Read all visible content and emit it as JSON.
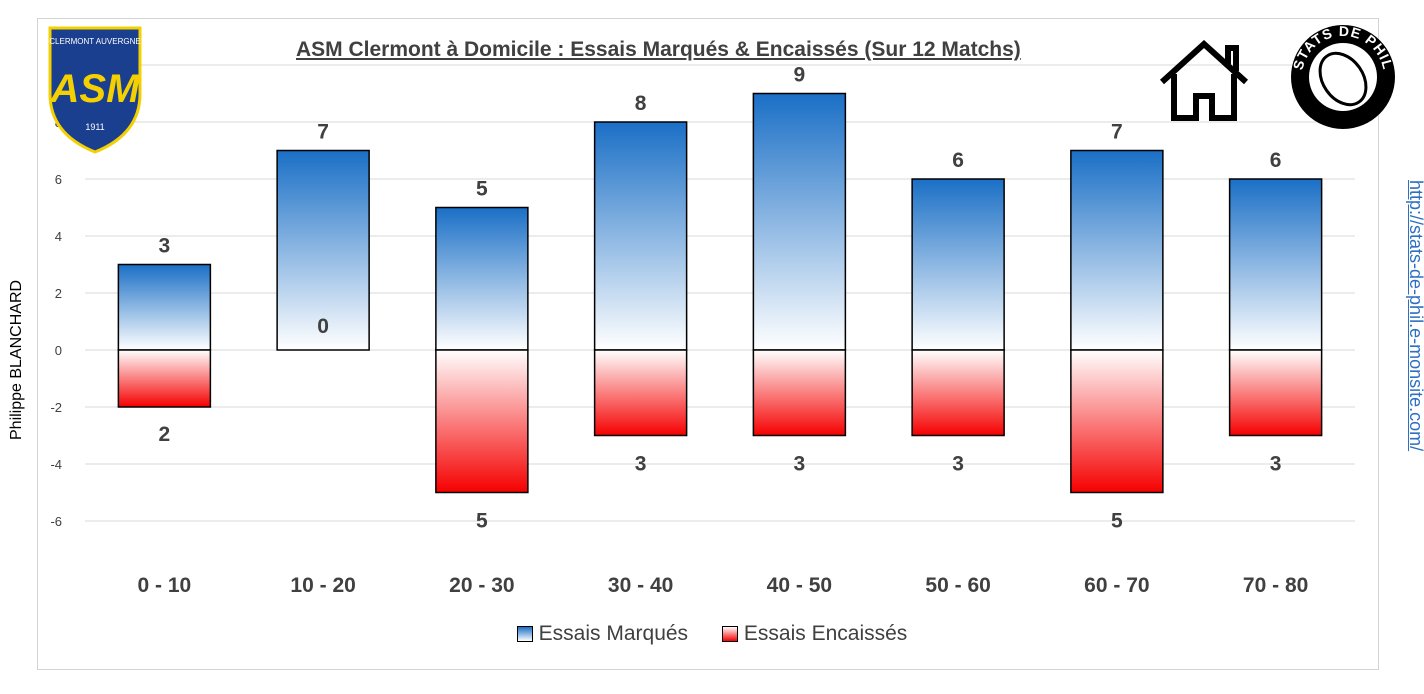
{
  "chart_data": {
    "type": "bar",
    "title": "ASM Clermont à Domicile : Essais Marqués & Encaissés (Sur 12 Matchs)",
    "categories": [
      "0 - 10",
      "10 - 20",
      "20 - 30",
      "30 - 40",
      "40 - 50",
      "50 - 60",
      "60 - 70",
      "70 - 80"
    ],
    "series": [
      {
        "name": "Essais Marqués",
        "values": [
          3,
          7,
          5,
          8,
          9,
          6,
          7,
          6
        ],
        "color": "#1a6fc6"
      },
      {
        "name": "Essais Encaissés",
        "values": [
          -2,
          0,
          -5,
          -3,
          -3,
          -3,
          -5,
          -3
        ],
        "color": "#f50000"
      }
    ],
    "data_labels_marques": [
      "3",
      "7",
      "5",
      "8",
      "9",
      "6",
      "7",
      "6"
    ],
    "data_labels_encaisses": [
      "2",
      "0",
      "5",
      "3",
      "3",
      "3",
      "5",
      "3"
    ],
    "yticks": [
      -6,
      -4,
      -2,
      0,
      2,
      4,
      6,
      8
    ],
    "ylim": [
      -6,
      10
    ],
    "grid": true,
    "legend": "bottom",
    "xlabel": "",
    "ylabel": ""
  },
  "author": "Philippe BLANCHARD",
  "url": "http://stats-de-phil.e-monsite.com/",
  "legend": {
    "marques": "Essais Marqués",
    "encaisses": "Essais Encaissés"
  },
  "logos": {
    "asm_top": "CLERMONT AUVERGNE",
    "asm_mid": "ASM",
    "asm_year": "1911",
    "stats": "STATS DE PHIL"
  }
}
